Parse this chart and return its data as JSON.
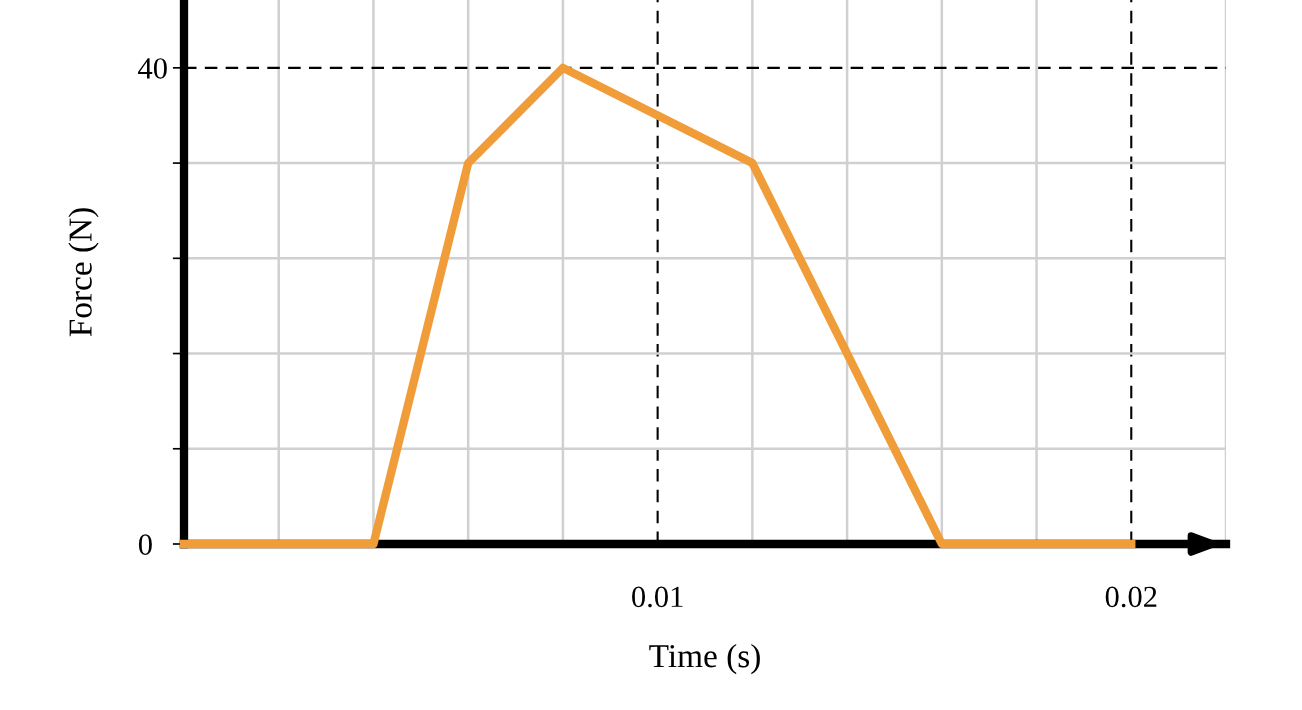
{
  "chart_data": {
    "type": "line",
    "xlabel": "Time (s)",
    "ylabel": "Force (N)",
    "x": [
      0,
      0.004,
      0.006,
      0.008,
      0.012,
      0.016,
      0.02
    ],
    "series": [
      {
        "color": "#f09c38",
        "values": [
          0,
          0,
          32,
          40,
          32,
          0,
          0
        ]
      }
    ],
    "xlim": [
      0,
      0.022
    ],
    "ylim": [
      0,
      45.7
    ],
    "xticks": [
      {
        "value": 0,
        "label": null
      },
      {
        "value": 0.002,
        "label": null
      },
      {
        "value": 0.004,
        "label": null
      },
      {
        "value": 0.006,
        "label": null
      },
      {
        "value": 0.008,
        "label": null
      },
      0.01,
      {
        "value": 0.012,
        "label": null
      },
      {
        "value": 0.014,
        "label": null
      },
      {
        "value": 0.016,
        "label": null
      },
      {
        "value": 0.018,
        "label": null
      },
      0.02,
      {
        "value": 0.022,
        "label": null
      }
    ],
    "yticks": [
      0,
      {
        "value": 8,
        "label": null
      },
      {
        "value": 16,
        "label": null
      },
      {
        "value": 24,
        "label": null
      },
      {
        "value": 32,
        "label": null
      },
      40
    ],
    "grid": true,
    "marker": "none",
    "line_style": "solid"
  }
}
